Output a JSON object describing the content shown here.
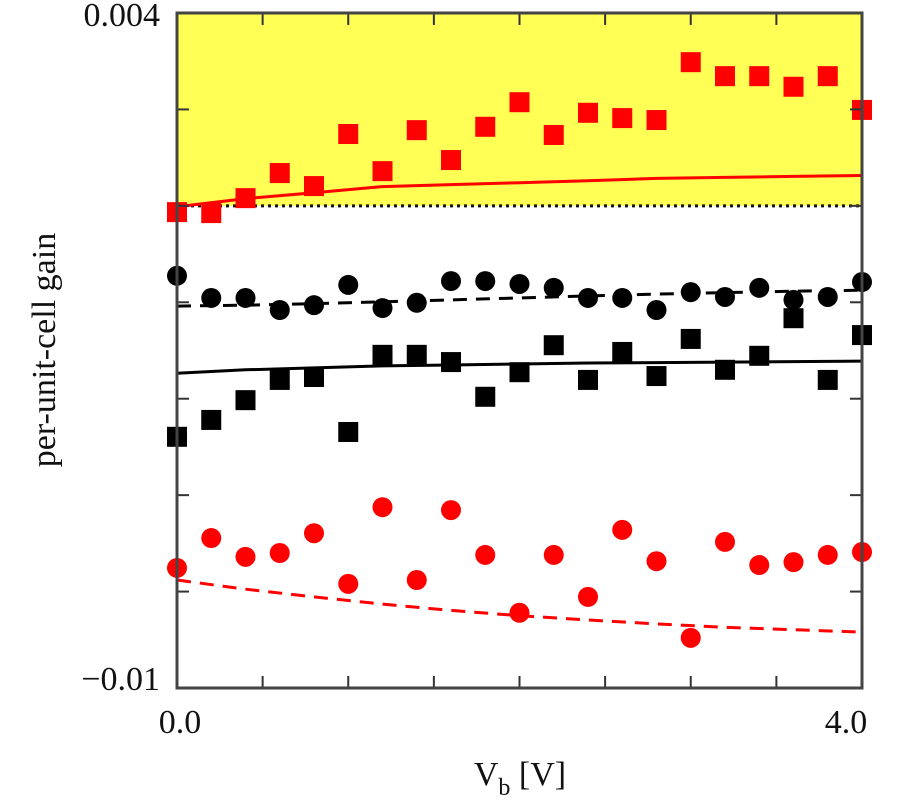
{
  "chart_data": {
    "type": "scatter",
    "title": "",
    "xlabel": "V",
    "xlabel_subscript": "b",
    "xlabel_unit": " [V]",
    "ylabel": "per-unit-cell gain",
    "xlim": [
      0.0,
      4.0
    ],
    "ylim": [
      -0.01,
      0.004
    ],
    "x_tick_labels": [
      {
        "value": 0.0,
        "label": "0.0"
      },
      {
        "value": 4.0,
        "label": "4.0"
      }
    ],
    "x_minor_ticks": [
      0.5,
      1.0,
      1.5,
      2.0,
      2.5,
      3.0,
      3.5
    ],
    "y_tick_labels": [
      {
        "value": 0.004,
        "label": "0.004"
      },
      {
        "value": -0.01,
        "label": "−0.01"
      }
    ],
    "y_minor_ticks": [
      0.002,
      0.0,
      -0.002,
      -0.004,
      -0.006,
      -0.008
    ],
    "grid": false,
    "legend": "none",
    "shaded_region": {
      "y_from": 0.0,
      "y_to": 0.004,
      "color": "#ffff55"
    },
    "reference_line": {
      "y": 0.0,
      "style": "dotted",
      "color": "#111111"
    },
    "x": [
      0.0,
      0.2,
      0.4,
      0.6,
      0.8,
      1.0,
      1.2,
      1.4,
      1.6,
      1.8,
      2.0,
      2.2,
      2.4,
      2.6,
      2.8,
      3.0,
      3.2,
      3.4,
      3.6,
      3.8,
      4.0
    ],
    "series": [
      {
        "name": "red-squares",
        "marker": "square",
        "color": "#ff0000",
        "values": [
          -0.00013,
          -0.00015,
          0.00016,
          0.00068,
          0.00041,
          0.00149,
          0.00072,
          0.00157,
          0.00095,
          0.00164,
          0.00215,
          0.00147,
          0.00193,
          0.00182,
          0.00178,
          0.00298,
          0.00269,
          0.00269,
          0.00247,
          0.00269,
          0.00199
        ]
      },
      {
        "name": "black-circles",
        "marker": "circle",
        "color": "#000000",
        "values": [
          -0.00145,
          -0.00191,
          -0.00191,
          -0.00216,
          -0.00206,
          -0.00164,
          -0.00212,
          -0.00201,
          -0.00156,
          -0.00156,
          -0.00162,
          -0.0017,
          -0.00191,
          -0.00191,
          -0.00216,
          -0.00179,
          -0.00189,
          -0.0017,
          -0.00195,
          -0.00189,
          -0.00158
        ]
      },
      {
        "name": "black-squares",
        "marker": "square",
        "color": "#000000",
        "values": [
          -0.00479,
          -0.00444,
          -0.00403,
          -0.00361,
          -0.00355,
          -0.00469,
          -0.00309,
          -0.00309,
          -0.00324,
          -0.00396,
          -0.00345,
          -0.00289,
          -0.00361,
          -0.00303,
          -0.00353,
          -0.00276,
          -0.0034,
          -0.00311,
          -0.00233,
          -0.00361,
          -0.00268
        ]
      },
      {
        "name": "red-circles",
        "marker": "circle",
        "color": "#ff0000",
        "values": [
          -0.00751,
          -0.00689,
          -0.00728,
          -0.0072,
          -0.00679,
          -0.00784,
          -0.00625,
          -0.00776,
          -0.00631,
          -0.00724,
          -0.00844,
          -0.00724,
          -0.00811,
          -0.00672,
          -0.00737,
          -0.00896,
          -0.00697,
          -0.00745,
          -0.00739,
          -0.00724,
          -0.00718
        ]
      }
    ],
    "curves": [
      {
        "name": "red-solid-curve",
        "style": "solid",
        "color": "#ff0000",
        "x": [
          0.0,
          0.4,
          0.8,
          1.2,
          1.6,
          2.0,
          2.4,
          2.8,
          3.2,
          3.6,
          4.0
        ],
        "values": [
          -2e-05,
          0.00015,
          0.00027,
          0.0004,
          0.00044,
          0.00048,
          0.00052,
          0.00057,
          0.00059,
          0.00061,
          0.00063
        ]
      },
      {
        "name": "black-dashed-curve",
        "style": "dashed",
        "color": "#000000",
        "x": [
          0.0,
          0.4,
          0.8,
          1.2,
          1.6,
          2.0,
          2.4,
          2.8,
          3.2,
          3.6,
          4.0
        ],
        "values": [
          -0.00208,
          -0.00206,
          -0.00203,
          -0.00199,
          -0.00195,
          -0.00191,
          -0.00187,
          -0.00183,
          -0.0018,
          -0.00177,
          -0.00175
        ]
      },
      {
        "name": "black-solid-curve",
        "style": "solid",
        "color": "#000000",
        "x": [
          0.0,
          0.4,
          0.8,
          1.2,
          1.6,
          2.0,
          2.4,
          2.8,
          3.2,
          3.6,
          4.0
        ],
        "values": [
          -0.00347,
          -0.0034,
          -0.00336,
          -0.00332,
          -0.0033,
          -0.00328,
          -0.00326,
          -0.00325,
          -0.00324,
          -0.00323,
          -0.00322
        ]
      },
      {
        "name": "red-dashed-curve",
        "style": "dashed",
        "color": "#ff0000",
        "x": [
          0.0,
          0.4,
          0.8,
          1.2,
          1.6,
          2.0,
          2.4,
          2.8,
          3.2,
          3.6,
          4.0
        ],
        "values": [
          -0.00776,
          -0.00795,
          -0.00811,
          -0.00826,
          -0.00839,
          -0.0085,
          -0.00859,
          -0.00867,
          -0.00874,
          -0.00879,
          -0.00884
        ]
      }
    ]
  }
}
